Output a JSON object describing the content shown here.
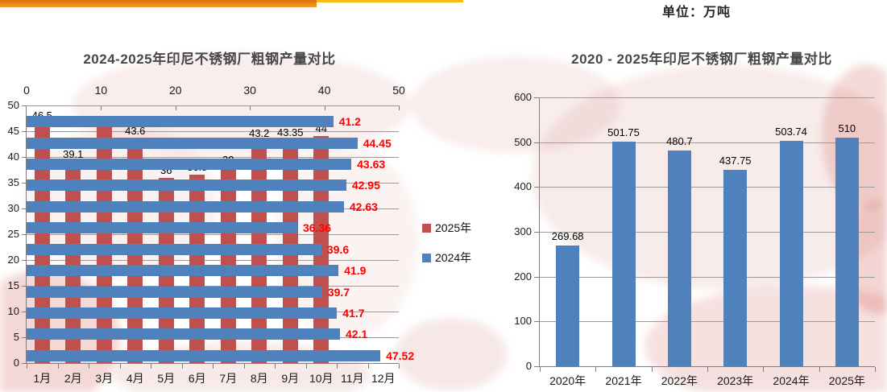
{
  "header": {
    "unit_label": "单位：万吨",
    "accent_line_color": "#fdb913",
    "accent_line_width": 575,
    "accent_bar_top_color": "#dd720c",
    "accent_bar_bottom_color": "#f49d2e",
    "accent_bar_width": 393
  },
  "chart_data": [
    {
      "type": "bar",
      "title": "2024-2025年印尼不锈钢厂粗钢产量对比",
      "categories": [
        "1月",
        "2月",
        "3月",
        "4月",
        "5月",
        "6月",
        "7月",
        "8月",
        "9月",
        "10月",
        "11月",
        "12月"
      ],
      "series": [
        {
          "name": "2025年",
          "render": "vertical-columns",
          "color": "#c0504d",
          "values": [
            46.5,
            39.1,
            45.8,
            43.6,
            36,
            36.5,
            38,
            43.2,
            43.35,
            44
          ],
          "labels": [
            "46.5",
            "39.1",
            "45.8",
            "43.6",
            "36",
            "36.5",
            "38",
            "43.2",
            "43.35",
            "44"
          ],
          "label_color": "#000000"
        },
        {
          "name": "2024年",
          "render": "horizontal-bars",
          "color": "#4f81bd",
          "values": [
            41.2,
            44.45,
            43.63,
            42.95,
            42.63,
            36.36,
            39.6,
            41.9,
            39.7,
            41.7,
            42.1,
            47.52
          ],
          "labels": [
            "41.2",
            "44.45",
            "43.63",
            "42.95",
            "42.63",
            "36.36",
            "39.6",
            "41.9",
            "39.7",
            "41.7",
            "42.1",
            "47.52"
          ],
          "label_color": "#ff0000"
        }
      ],
      "left_axis": {
        "min": 0,
        "max": 50,
        "step": 5,
        "ticks": [
          "0",
          "5",
          "10",
          "15",
          "20",
          "25",
          "30",
          "35",
          "40",
          "45",
          "50"
        ]
      },
      "top_axis": {
        "min": 0,
        "max": 50,
        "step": 10,
        "ticks": [
          "0",
          "10",
          "20",
          "30",
          "40",
          "50"
        ]
      },
      "legend_position": "right",
      "grid": true
    },
    {
      "type": "bar",
      "title": "2020 - 2025年印尼不锈钢厂粗钢产量对比",
      "categories": [
        "2020年",
        "2021年",
        "2022年",
        "2023年",
        "2024年",
        "2025年"
      ],
      "values": [
        269.68,
        501.75,
        480.7,
        437.75,
        503.74,
        510
      ],
      "labels": [
        "269.68",
        "501.75",
        "480.7",
        "437.75",
        "503.74",
        "510"
      ],
      "bar_color": "#4f81bd",
      "label_color": "#000000",
      "ylabel": "",
      "xlabel": "",
      "ylim": [
        0,
        600
      ],
      "ystep": 100,
      "yticks": [
        "0",
        "100",
        "200",
        "300",
        "400",
        "500",
        "600"
      ],
      "grid": true,
      "legend_position": "none"
    }
  ]
}
